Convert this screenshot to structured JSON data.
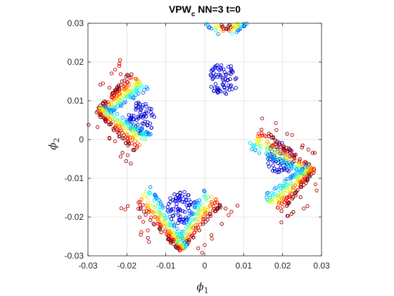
{
  "chart_data": {
    "type": "scatter",
    "title": "VPW",
    "title_subscript": "c",
    "title_suffix": " NN=3 t=0",
    "xlabel": "ϕ",
    "xlabel_subscript": "1",
    "ylabel": "ϕ",
    "ylabel_subscript": "2",
    "xlim": [
      -0.03,
      0.03
    ],
    "ylim": [
      -0.03,
      0.03
    ],
    "xticks": [
      "-0.03",
      "-0.02",
      "-0.01",
      "0",
      "0.01",
      "0.02",
      "0.03"
    ],
    "yticks": [
      "-0.03",
      "-0.02",
      "-0.01",
      "0",
      "0.01",
      "0.02",
      "0.03"
    ],
    "grid": true,
    "marker": "open-circle",
    "colormap": "jet",
    "clusters": [
      {
        "corner": [
          0.0055,
          0.0285
        ],
        "arms": [
          [
            -0.0125,
            0.0132
          ],
          [
            0.0105,
            0.0125
          ]
        ],
        "color_spread": 0.01,
        "blue_core": [
          0.0048,
          0.0155
        ],
        "blue_core_radius": 0.0042
      },
      {
        "corner": [
          0.0285,
          -0.0078
        ],
        "arms": [
          [
            -0.0145,
            0.0108
          ],
          [
            -0.009,
            -0.0108
          ]
        ],
        "color_spread": 0.01,
        "blue_core": [
          0.0195,
          -0.0048
        ],
        "blue_core_radius": 0.0042
      },
      {
        "corner": [
          -0.0062,
          -0.029
        ],
        "arms": [
          [
            0.0105,
            0.0125
          ],
          [
            -0.012,
            0.013
          ]
        ],
        "color_spread": 0.01,
        "blue_core": [
          -0.006,
          -0.0175
        ],
        "blue_core_radius": 0.0042
      },
      {
        "corner": [
          -0.028,
          0.0072
        ],
        "arms": [
          [
            0.009,
            0.01
          ],
          [
            0.01,
            -0.01
          ]
        ],
        "color_spread": 0.01,
        "blue_core": [
          -0.0165,
          0.0055
        ],
        "blue_core_radius": 0.0042
      }
    ],
    "points_per_arm": 70
  }
}
